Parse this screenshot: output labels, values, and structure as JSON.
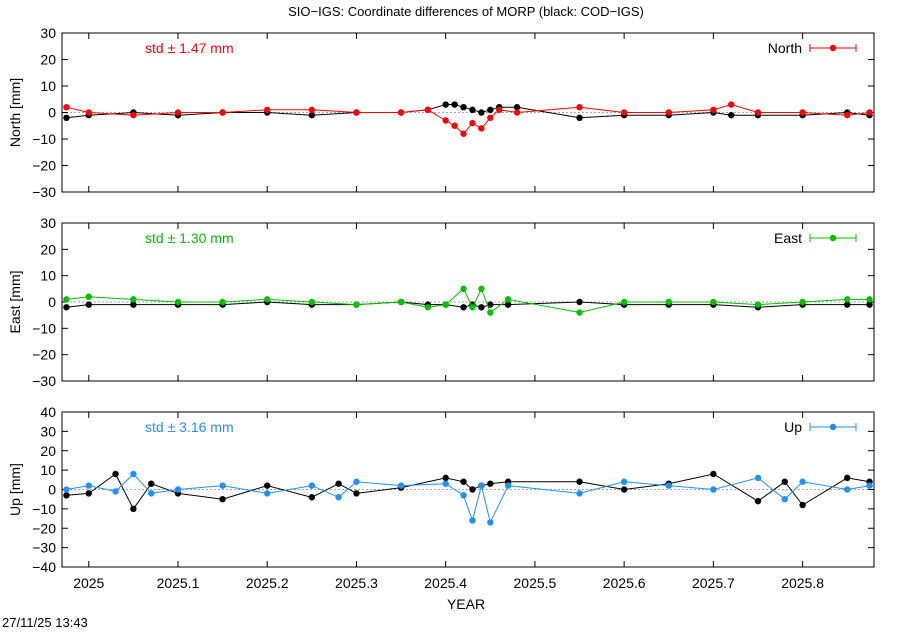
{
  "title": "SIO−IGS: Coordinate differences of MORP (black: COD−IGS)",
  "xlabel": "YEAR",
  "timestamp": "27/11/25 13:43",
  "x_ticks": [
    "2025",
    "2025.1",
    "2025.2",
    "2025.3",
    "2025.4",
    "2025.5",
    "2025.6",
    "2025.7",
    "2025.8"
  ],
  "colors": {
    "north": "#ff0000",
    "east": "#00c000",
    "up": "#1e90ff",
    "reference": "#000000"
  },
  "chart_data": [
    {
      "type": "line",
      "ylabel": "North [mm]",
      "ylim": [
        -30,
        30
      ],
      "yticks": [
        "30",
        "20",
        "10",
        "0",
        "−10",
        "−20",
        "−30"
      ],
      "xlim": [
        2024.97,
        2025.88
      ],
      "std_label": "std ± 1.47 mm",
      "legend": "North",
      "legend_position": "top-right",
      "series": [
        {
          "name": "North",
          "color": "#ff0000",
          "x": [
            2024.975,
            2025.0,
            2025.05,
            2025.1,
            2025.15,
            2025.2,
            2025.25,
            2025.3,
            2025.35,
            2025.38,
            2025.4,
            2025.41,
            2025.42,
            2025.43,
            2025.44,
            2025.45,
            2025.46,
            2025.48,
            2025.55,
            2025.6,
            2025.65,
            2025.7,
            2025.72,
            2025.75,
            2025.8,
            2025.85,
            2025.875
          ],
          "y": [
            2,
            0,
            -1,
            0,
            0,
            1,
            1,
            0,
            0,
            1,
            -3,
            -5,
            -8,
            -4,
            -6,
            -2,
            1,
            0,
            2,
            0,
            0,
            1,
            3,
            0,
            0,
            -1,
            0
          ]
        },
        {
          "color": "#000000",
          "x": [
            2024.975,
            2025.0,
            2025.05,
            2025.1,
            2025.15,
            2025.2,
            2025.25,
            2025.3,
            2025.35,
            2025.38,
            2025.4,
            2025.41,
            2025.42,
            2025.43,
            2025.44,
            2025.45,
            2025.46,
            2025.48,
            2025.55,
            2025.6,
            2025.65,
            2025.7,
            2025.72,
            2025.75,
            2025.8,
            2025.85,
            2025.875
          ],
          "y": [
            -2,
            -1,
            0,
            -1,
            0,
            0,
            -1,
            0,
            0,
            1,
            3,
            3,
            2,
            1,
            0,
            1,
            2,
            2,
            -2,
            -1,
            -1,
            0,
            -1,
            -1,
            -1,
            0,
            -1
          ]
        }
      ]
    },
    {
      "type": "line",
      "ylabel": "East [mm]",
      "ylim": [
        -30,
        30
      ],
      "yticks": [
        "30",
        "20",
        "10",
        "0",
        "−10",
        "−20",
        "−30"
      ],
      "xlim": [
        2024.97,
        2025.88
      ],
      "std_label": "std ± 1.30 mm",
      "legend": "East",
      "legend_position": "top-right",
      "series": [
        {
          "name": "East",
          "color": "#00c000",
          "x": [
            2024.975,
            2025.0,
            2025.05,
            2025.1,
            2025.15,
            2025.2,
            2025.25,
            2025.3,
            2025.35,
            2025.38,
            2025.4,
            2025.42,
            2025.43,
            2025.44,
            2025.45,
            2025.47,
            2025.55,
            2025.6,
            2025.65,
            2025.7,
            2025.75,
            2025.8,
            2025.85,
            2025.875
          ],
          "y": [
            1,
            2,
            1,
            0,
            0,
            1,
            0,
            -1,
            0,
            -2,
            -1,
            5,
            -2,
            5,
            -4,
            1,
            -4,
            0,
            0,
            0,
            -1,
            0,
            1,
            1
          ]
        },
        {
          "color": "#000000",
          "x": [
            2024.975,
            2025.0,
            2025.05,
            2025.1,
            2025.15,
            2025.2,
            2025.25,
            2025.3,
            2025.35,
            2025.38,
            2025.4,
            2025.42,
            2025.43,
            2025.44,
            2025.45,
            2025.47,
            2025.55,
            2025.6,
            2025.65,
            2025.7,
            2025.75,
            2025.8,
            2025.85,
            2025.875
          ],
          "y": [
            -2,
            -1,
            -1,
            -1,
            -1,
            0,
            -1,
            -1,
            0,
            -1,
            -1,
            -2,
            -1,
            -2,
            -1,
            -1,
            0,
            -1,
            -1,
            -1,
            -2,
            -1,
            -1,
            -1
          ]
        }
      ]
    },
    {
      "type": "line",
      "ylabel": "Up [mm]",
      "ylim": [
        -40,
        40
      ],
      "yticks": [
        "40",
        "30",
        "20",
        "10",
        "0",
        "−10",
        "−20",
        "−30",
        "−40"
      ],
      "xlim": [
        2024.97,
        2025.88
      ],
      "std_label": "std ± 3.16 mm",
      "legend": "Up",
      "legend_position": "top-right",
      "series": [
        {
          "name": "Up",
          "color": "#1e90ff",
          "x": [
            2024.975,
            2025.0,
            2025.03,
            2025.05,
            2025.07,
            2025.1,
            2025.15,
            2025.2,
            2025.25,
            2025.28,
            2025.3,
            2025.35,
            2025.4,
            2025.42,
            2025.43,
            2025.44,
            2025.45,
            2025.47,
            2025.55,
            2025.6,
            2025.65,
            2025.7,
            2025.75,
            2025.78,
            2025.8,
            2025.85,
            2025.875
          ],
          "y": [
            0,
            2,
            -1,
            8,
            -2,
            0,
            2,
            -2,
            2,
            -4,
            4,
            2,
            3,
            -3,
            -16,
            2,
            -17,
            2,
            -2,
            4,
            2,
            0,
            6,
            -5,
            4,
            0,
            2
          ]
        },
        {
          "color": "#000000",
          "x": [
            2024.975,
            2025.0,
            2025.03,
            2025.05,
            2025.07,
            2025.1,
            2025.15,
            2025.2,
            2025.25,
            2025.28,
            2025.3,
            2025.35,
            2025.4,
            2025.42,
            2025.43,
            2025.44,
            2025.45,
            2025.47,
            2025.55,
            2025.6,
            2025.65,
            2025.7,
            2025.75,
            2025.78,
            2025.8,
            2025.85,
            2025.875
          ],
          "y": [
            -3,
            -2,
            8,
            -10,
            3,
            -2,
            -5,
            2,
            -4,
            3,
            -2,
            1,
            6,
            4,
            0,
            2,
            3,
            4,
            4,
            0,
            3,
            8,
            -6,
            4,
            -8,
            6,
            4
          ]
        }
      ]
    }
  ]
}
